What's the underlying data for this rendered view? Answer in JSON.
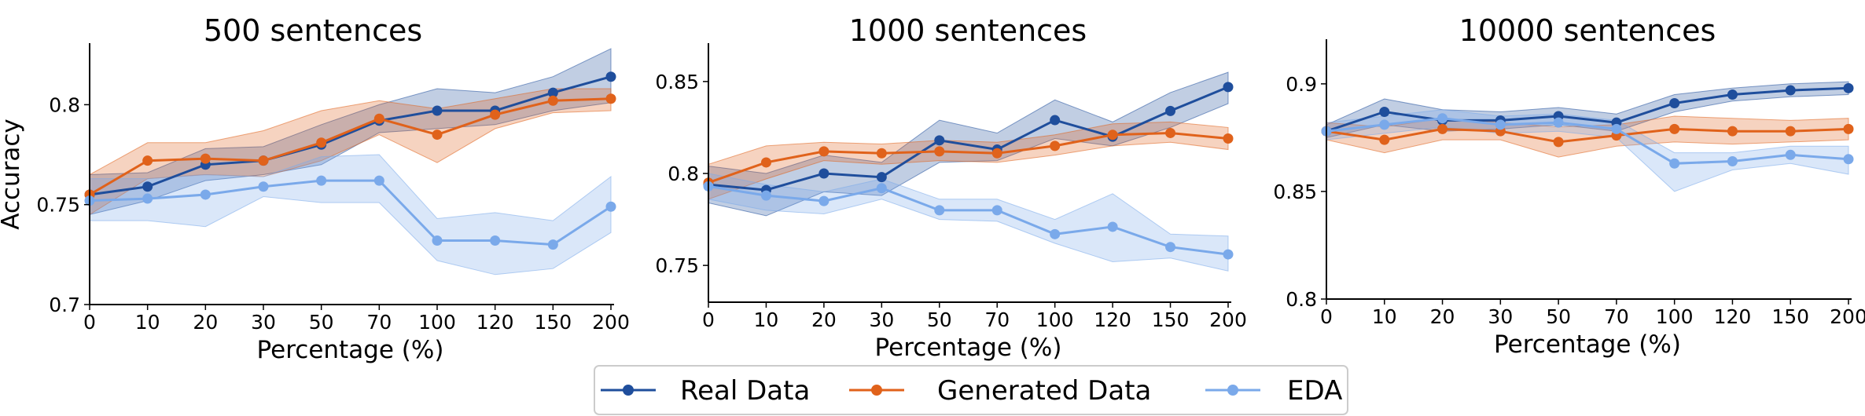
{
  "figure": {
    "ylabel": "Accuracy",
    "legend": {
      "position": "bottom-center",
      "entries": [
        {
          "name": "Real Data",
          "color": "#1f4e9c"
        },
        {
          "name": "Generated Data",
          "color": "#e0621b"
        },
        {
          "name": "EDA",
          "color": "#7aa9ea"
        }
      ]
    }
  },
  "chart_data": [
    {
      "type": "line",
      "title": "500 sentences",
      "xlabel": "Percentage (%)",
      "ylabel": "Accuracy",
      "categories": [
        "0",
        "10",
        "20",
        "30",
        "50",
        "70",
        "100",
        "120",
        "150",
        "200"
      ],
      "ylim": [
        0.7,
        0.83
      ],
      "yticks": [
        0.7,
        0.75,
        0.8
      ],
      "ytick_labels": [
        "0.7",
        "0.75",
        "0.8"
      ],
      "series": [
        {
          "name": "Real Data",
          "color": "#1f4e9c",
          "values": [
            0.755,
            0.759,
            0.77,
            0.772,
            0.78,
            0.792,
            0.797,
            0.797,
            0.806,
            0.814
          ],
          "lower": [
            0.745,
            0.752,
            0.762,
            0.765,
            0.77,
            0.786,
            0.788,
            0.79,
            0.797,
            0.801
          ],
          "upper": [
            0.765,
            0.766,
            0.778,
            0.779,
            0.79,
            0.8,
            0.808,
            0.806,
            0.814,
            0.828
          ]
        },
        {
          "name": "Generated Data",
          "color": "#e0621b",
          "values": [
            0.755,
            0.772,
            0.773,
            0.772,
            0.781,
            0.793,
            0.785,
            0.795,
            0.802,
            0.803
          ],
          "lower": [
            0.745,
            0.763,
            0.765,
            0.764,
            0.772,
            0.785,
            0.771,
            0.788,
            0.796,
            0.797
          ],
          "upper": [
            0.765,
            0.781,
            0.781,
            0.787,
            0.797,
            0.802,
            0.798,
            0.803,
            0.808,
            0.808
          ]
        },
        {
          "name": "EDA",
          "color": "#7aa9ea",
          "values": [
            0.752,
            0.753,
            0.755,
            0.759,
            0.762,
            0.762,
            0.732,
            0.732,
            0.73,
            0.749
          ],
          "lower": [
            0.742,
            0.742,
            0.739,
            0.754,
            0.751,
            0.751,
            0.722,
            0.715,
            0.718,
            0.736
          ],
          "upper": [
            0.763,
            0.763,
            0.765,
            0.764,
            0.774,
            0.775,
            0.743,
            0.746,
            0.742,
            0.764
          ]
        }
      ]
    },
    {
      "type": "line",
      "title": "1000 sentences",
      "xlabel": "Percentage (%)",
      "ylabel": "",
      "categories": [
        "0",
        "10",
        "20",
        "30",
        "50",
        "70",
        "100",
        "120",
        "150",
        "200"
      ],
      "ylim": [
        0.73,
        0.87
      ],
      "yticks": [
        0.75,
        0.8,
        0.85
      ],
      "ytick_labels": [
        "0.75",
        "0.8",
        "0.85"
      ],
      "series": [
        {
          "name": "Real Data",
          "color": "#1f4e9c",
          "values": [
            0.794,
            0.791,
            0.8,
            0.798,
            0.818,
            0.813,
            0.829,
            0.82,
            0.834,
            0.847
          ],
          "lower": [
            0.784,
            0.777,
            0.79,
            0.788,
            0.806,
            0.807,
            0.819,
            0.815,
            0.825,
            0.838
          ],
          "upper": [
            0.804,
            0.8,
            0.81,
            0.806,
            0.829,
            0.822,
            0.84,
            0.828,
            0.844,
            0.855
          ]
        },
        {
          "name": "Generated Data",
          "color": "#e0621b",
          "values": [
            0.795,
            0.806,
            0.812,
            0.811,
            0.812,
            0.811,
            0.815,
            0.821,
            0.822,
            0.819
          ],
          "lower": [
            0.786,
            0.797,
            0.807,
            0.805,
            0.807,
            0.806,
            0.81,
            0.815,
            0.817,
            0.813
          ],
          "upper": [
            0.805,
            0.815,
            0.817,
            0.816,
            0.818,
            0.817,
            0.821,
            0.827,
            0.828,
            0.825
          ]
        },
        {
          "name": "EDA",
          "color": "#7aa9ea",
          "values": [
            0.793,
            0.788,
            0.785,
            0.792,
            0.78,
            0.78,
            0.767,
            0.771,
            0.76,
            0.756
          ],
          "lower": [
            0.786,
            0.78,
            0.778,
            0.786,
            0.775,
            0.774,
            0.762,
            0.752,
            0.754,
            0.747
          ],
          "upper": [
            0.8,
            0.794,
            0.79,
            0.797,
            0.786,
            0.786,
            0.775,
            0.789,
            0.767,
            0.766
          ]
        }
      ]
    },
    {
      "type": "line",
      "title": "10000 sentences",
      "xlabel": "Percentage (%)",
      "ylabel": "",
      "categories": [
        "0",
        "10",
        "20",
        "30",
        "50",
        "70",
        "100",
        "120",
        "150",
        "200"
      ],
      "ylim": [
        0.8,
        0.92
      ],
      "yticks": [
        0.8,
        0.85,
        0.9
      ],
      "ytick_labels": [
        "0.8",
        "0.85",
        "0.9"
      ],
      "series": [
        {
          "name": "Real Data",
          "color": "#1f4e9c",
          "values": [
            0.878,
            0.887,
            0.883,
            0.883,
            0.885,
            0.882,
            0.891,
            0.895,
            0.897,
            0.898
          ],
          "lower": [
            0.875,
            0.881,
            0.878,
            0.879,
            0.881,
            0.878,
            0.887,
            0.892,
            0.894,
            0.895
          ],
          "upper": [
            0.881,
            0.893,
            0.888,
            0.887,
            0.889,
            0.886,
            0.895,
            0.898,
            0.9,
            0.901
          ]
        },
        {
          "name": "Generated Data",
          "color": "#e0621b",
          "values": [
            0.878,
            0.874,
            0.879,
            0.878,
            0.873,
            0.876,
            0.879,
            0.878,
            0.878,
            0.879
          ],
          "lower": [
            0.874,
            0.868,
            0.874,
            0.874,
            0.866,
            0.871,
            0.873,
            0.872,
            0.873,
            0.874
          ],
          "upper": [
            0.882,
            0.88,
            0.884,
            0.882,
            0.88,
            0.881,
            0.885,
            0.884,
            0.883,
            0.884
          ]
        },
        {
          "name": "EDA",
          "color": "#7aa9ea",
          "values": [
            0.878,
            0.881,
            0.884,
            0.881,
            0.882,
            0.879,
            0.863,
            0.864,
            0.867,
            0.865
          ],
          "lower": [
            0.874,
            0.877,
            0.88,
            0.877,
            0.878,
            0.875,
            0.85,
            0.86,
            0.863,
            0.858
          ],
          "upper": [
            0.882,
            0.885,
            0.888,
            0.885,
            0.886,
            0.883,
            0.868,
            0.868,
            0.871,
            0.871
          ]
        }
      ]
    }
  ]
}
